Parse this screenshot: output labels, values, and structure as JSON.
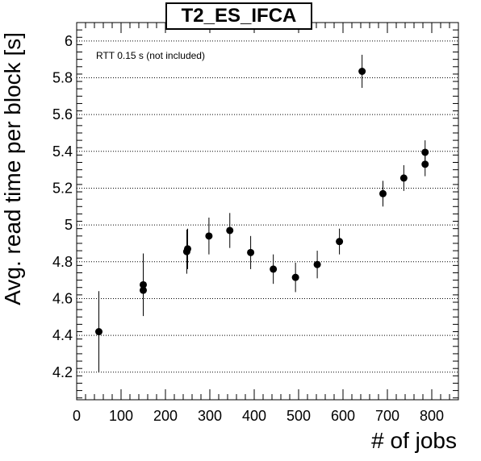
{
  "chart_data": {
    "type": "scatter",
    "title": "T2_ES_IFCA",
    "annotation": "RTT 0.15 s (not included)",
    "xlabel": "# of jobs",
    "ylabel": "Avg. read time per block [s]",
    "xlim": [
      0,
      860
    ],
    "ylim": [
      4.05,
      6.1
    ],
    "xticks": [
      0,
      100,
      200,
      300,
      400,
      500,
      600,
      700,
      800
    ],
    "yticks": [
      4.2,
      4.4,
      4.6,
      4.8,
      5,
      5.2,
      5.4,
      5.6,
      5.8,
      6
    ],
    "ytick_labels": [
      "4.2",
      "4.4",
      "4.6",
      "4.8",
      "5",
      "5.2",
      "5.4",
      "5.6",
      "5.8",
      "6"
    ],
    "grid": "horizontal dotted",
    "points": [
      {
        "x": 50,
        "y": 4.42,
        "err": 0.22
      },
      {
        "x": 150,
        "y": 4.645,
        "err": 0.13
      },
      {
        "x": 150,
        "y": 4.675,
        "err": 0.17
      },
      {
        "x": 248,
        "y": 4.855,
        "err": 0.12
      },
      {
        "x": 250,
        "y": 4.87,
        "err": 0.11
      },
      {
        "x": 298,
        "y": 4.94,
        "err": 0.1
      },
      {
        "x": 345,
        "y": 4.97,
        "err": 0.095
      },
      {
        "x": 392,
        "y": 4.85,
        "err": 0.09
      },
      {
        "x": 443,
        "y": 4.76,
        "err": 0.08
      },
      {
        "x": 493,
        "y": 4.715,
        "err": 0.08
      },
      {
        "x": 542,
        "y": 4.785,
        "err": 0.075
      },
      {
        "x": 592,
        "y": 4.91,
        "err": 0.07
      },
      {
        "x": 643,
        "y": 5.835,
        "err": 0.09
      },
      {
        "x": 690,
        "y": 5.17,
        "err": 0.07
      },
      {
        "x": 737,
        "y": 5.255,
        "err": 0.07
      },
      {
        "x": 785,
        "y": 5.33,
        "err": 0.065
      },
      {
        "x": 785,
        "y": 5.395,
        "err": 0.065
      }
    ]
  }
}
